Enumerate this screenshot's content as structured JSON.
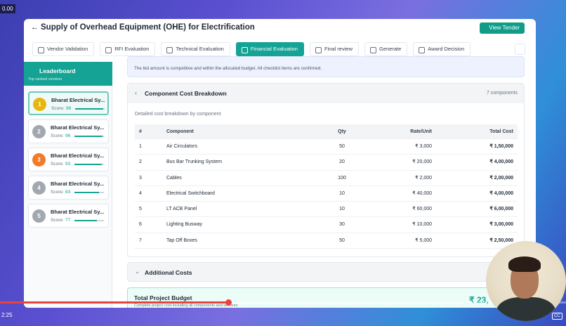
{
  "video": {
    "time_start": "0.00",
    "time_current": "2:25",
    "captions": "CC"
  },
  "header": {
    "title": "Supply of Overhead Equipment (OHE) for Electrification",
    "button": "View Tender"
  },
  "tabs": {
    "items": [
      "Vendor Validation",
      "RFI Evaluation",
      "Technical Evaluation",
      "Financial Evaluation",
      "Final review",
      "Generate",
      "Award Decision"
    ],
    "active": 3
  },
  "leaderboard": {
    "title": "Leaderboard",
    "subtitle": "Top ranked vendors",
    "score_label": "Score:",
    "vendors": [
      {
        "rank": 1,
        "name": "Bharat Electrical Sy...",
        "score": 96
      },
      {
        "rank": 2,
        "name": "Bharat Electrical Sy...",
        "score": 96
      },
      {
        "rank": 3,
        "name": "Bharat Electrical Sy...",
        "score": 93
      },
      {
        "rank": 4,
        "name": "Bharat Electrical Sy...",
        "score": 83
      },
      {
        "rank": 5,
        "name": "Bharat Electrical Sy...",
        "score": 77
      }
    ]
  },
  "banner": {
    "text": "The bid amount is competitive and within the allocated budget. All checklist items are confirmed."
  },
  "components": {
    "title": "Component Cost Breakdown",
    "count": "7 components",
    "description": "Detailed cost breakdown by component",
    "table": {
      "headers": [
        "#",
        "Component",
        "Qty",
        "Rate/Unit",
        "Total Cost"
      ],
      "rows": [
        [
          "1",
          "Air Circulators",
          "50",
          "₹ 3,000",
          "₹ 1,50,000"
        ],
        [
          "2",
          "Bus Bar Trunking System",
          "20",
          "₹ 20,000",
          "₹ 4,00,000"
        ],
        [
          "3",
          "Cables",
          "100",
          "₹ 2,000",
          "₹ 2,00,000"
        ],
        [
          "4",
          "Electrical Switchboard",
          "10",
          "₹ 40,000",
          "₹ 4,00,000"
        ],
        [
          "5",
          "LT ACB Panel",
          "10",
          "₹ 60,000",
          "₹ 6,00,000"
        ],
        [
          "6",
          "Lighting Busway",
          "30",
          "₹ 10,000",
          "₹ 3,00,000"
        ],
        [
          "7",
          "Tap Off Boxes",
          "50",
          "₹ 5,000",
          "₹ 2,50,000"
        ]
      ]
    }
  },
  "additional": {
    "title": "Additional Costs"
  },
  "total": {
    "title": "Total Project Budget",
    "subtitle": "Complete project cost including all components and services",
    "amount": "₹ 23,"
  }
}
